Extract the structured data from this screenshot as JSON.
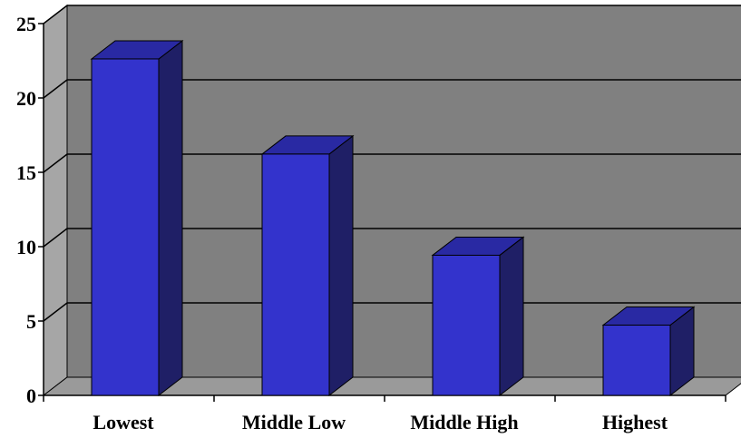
{
  "chart_data": {
    "type": "bar",
    "categories": [
      "Lowest",
      "Middle Low",
      "Middle High",
      "Highest"
    ],
    "values": [
      23.6,
      17.2,
      10.4,
      5.7
    ],
    "ylim": [
      0,
      25
    ],
    "yticks": [
      "0",
      "5",
      "10",
      "15",
      "20",
      "25"
    ],
    "grid": true,
    "style": "3d-column",
    "colors": {
      "bar_front": "#3333cc",
      "bar_side": "#1f1f66",
      "bar_top": "#2929a3",
      "plot_back": "#808080",
      "plot_floor": "#9a9a9a",
      "plot_wall": "#a6a6a6",
      "gridline": "#000000"
    }
  }
}
